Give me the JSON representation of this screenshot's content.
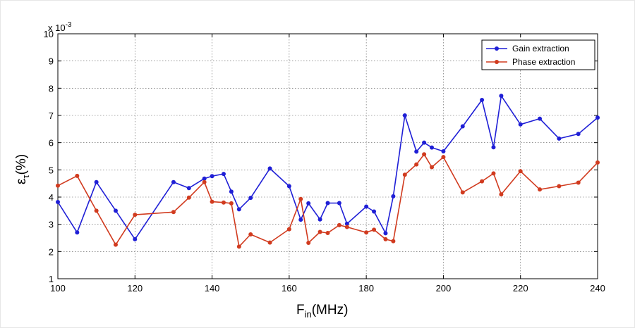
{
  "chart_data": {
    "type": "line",
    "xlabel": "F",
    "xlabel_sub": "in",
    "xlabel_unit": "(MHz)",
    "ylabel": "ε",
    "ylabel_sub": "τ",
    "ylabel_unit": "(%)",
    "y_multiplier": "x 10",
    "y_multiplier_exp": "-3",
    "xlim": [
      100,
      240
    ],
    "ylim": [
      1,
      10
    ],
    "xticks": [
      100,
      120,
      140,
      160,
      180,
      200,
      220,
      240
    ],
    "yticks": [
      1,
      2,
      3,
      4,
      5,
      6,
      7,
      8,
      9,
      10
    ],
    "grid": true,
    "legend_position": "top-right",
    "series": [
      {
        "name": "Gain extraction",
        "color": "#1f1fd6",
        "x": [
          100,
          105,
          110,
          115,
          120,
          130,
          134,
          138,
          140,
          143,
          145,
          147,
          150,
          155,
          160,
          163,
          165,
          168,
          170,
          173,
          175,
          180,
          182,
          185,
          187,
          190,
          193,
          195,
          197,
          200,
          205,
          210,
          213,
          215,
          220,
          225,
          230,
          235,
          240
        ],
        "y": [
          3.82,
          2.7,
          4.55,
          3.5,
          2.45,
          4.55,
          4.33,
          4.68,
          4.77,
          4.85,
          4.2,
          3.55,
          3.97,
          5.05,
          4.4,
          3.17,
          3.77,
          3.18,
          3.78,
          3.78,
          3.02,
          3.65,
          3.47,
          2.67,
          4.03,
          7.0,
          5.67,
          6.0,
          5.82,
          5.68,
          6.6,
          7.57,
          5.83,
          7.72,
          6.67,
          6.88,
          6.15,
          6.32,
          6.92
        ]
      },
      {
        "name": "Phase extraction",
        "color": "#d13b1f",
        "x": [
          100,
          105,
          110,
          115,
          120,
          130,
          134,
          138,
          140,
          143,
          145,
          147,
          150,
          155,
          160,
          163,
          165,
          168,
          170,
          173,
          175,
          180,
          182,
          185,
          187,
          190,
          193,
          195,
          197,
          200,
          205,
          210,
          213,
          215,
          220,
          225,
          230,
          235,
          240
        ],
        "y": [
          4.42,
          4.78,
          3.5,
          2.25,
          3.35,
          3.45,
          3.98,
          4.55,
          3.83,
          3.8,
          3.77,
          2.18,
          2.63,
          2.33,
          2.82,
          3.93,
          2.32,
          2.72,
          2.68,
          2.97,
          2.9,
          2.7,
          2.8,
          2.45,
          2.38,
          4.82,
          5.2,
          5.57,
          5.1,
          5.47,
          4.17,
          4.58,
          4.87,
          4.1,
          4.95,
          4.28,
          4.4,
          4.53,
          5.27
        ]
      }
    ]
  }
}
